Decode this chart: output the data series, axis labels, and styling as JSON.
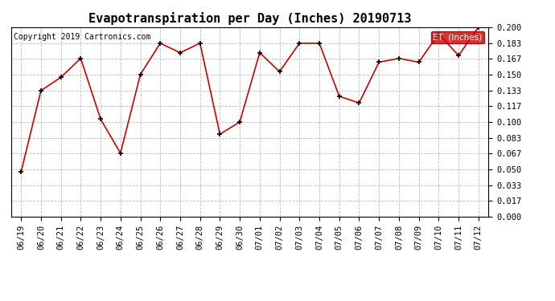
{
  "title": "Evapotranspiration per Day (Inches) 20190713",
  "copyright": "Copyright 2019 Cartronics.com",
  "legend_label": "ET  (Inches)",
  "x_labels": [
    "06/19",
    "06/20",
    "06/21",
    "06/22",
    "06/23",
    "06/24",
    "06/25",
    "06/26",
    "06/27",
    "06/28",
    "06/29",
    "06/30",
    "07/01",
    "07/02",
    "07/03",
    "07/04",
    "07/05",
    "07/06",
    "07/07",
    "07/08",
    "07/09",
    "07/10",
    "07/11",
    "07/12"
  ],
  "y_values": [
    0.047,
    0.133,
    0.147,
    0.167,
    0.103,
    0.067,
    0.15,
    0.183,
    0.173,
    0.183,
    0.087,
    0.1,
    0.173,
    0.153,
    0.183,
    0.183,
    0.127,
    0.12,
    0.163,
    0.167,
    0.163,
    0.193,
    0.17,
    0.2
  ],
  "y_ticks": [
    0.0,
    0.017,
    0.033,
    0.05,
    0.067,
    0.083,
    0.1,
    0.117,
    0.133,
    0.15,
    0.167,
    0.183,
    0.2
  ],
  "ylim": [
    0.0,
    0.2
  ],
  "line_color": "#cc0000",
  "marker_color": "#000000",
  "grid_color": "#bbbbbb",
  "background_color": "#ffffff",
  "legend_bg_color": "#cc0000",
  "legend_text_color": "#ffffff",
  "title_fontsize": 11,
  "copyright_fontsize": 7,
  "tick_fontsize": 7.5,
  "legend_fontsize": 7.5
}
